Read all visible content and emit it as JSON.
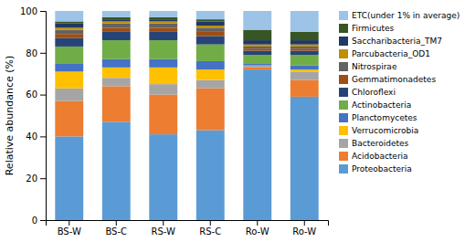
{
  "chart_data": {
    "type": "bar",
    "stacked": true,
    "categories": [
      "BS-W",
      "BS-C",
      "RS-W",
      "RS-C",
      "Ro-W",
      "Ro-W"
    ],
    "series": [
      {
        "name": "Proteobacteria",
        "color": "#5B9BD5",
        "values": [
          40,
          47,
          41,
          43,
          72,
          59
        ]
      },
      {
        "name": "Acidobacteria",
        "color": "#ED7D31",
        "values": [
          17,
          17,
          19,
          20,
          1,
          8
        ]
      },
      {
        "name": "Bacteroidetes",
        "color": "#A5A5A5",
        "values": [
          6,
          4,
          5,
          4,
          1,
          4
        ]
      },
      {
        "name": "Verrucomicrobia",
        "color": "#FFC000",
        "values": [
          8,
          5,
          8,
          5,
          0,
          1
        ]
      },
      {
        "name": "Planctomycetes",
        "color": "#4472C4",
        "values": [
          4,
          4,
          4,
          4,
          1,
          2
        ]
      },
      {
        "name": "Actinobacteria",
        "color": "#70AD47",
        "values": [
          8,
          9,
          9,
          8,
          4,
          5
        ]
      },
      {
        "name": "Chloroflexi",
        "color": "#264478",
        "values": [
          4,
          4,
          4,
          4,
          2,
          2
        ]
      },
      {
        "name": "Gemmatimonadetes",
        "color": "#9E4E12",
        "values": [
          2,
          2,
          2,
          2,
          1,
          1
        ]
      },
      {
        "name": "Nitrospirae",
        "color": "#636363",
        "values": [
          2,
          2,
          2,
          2,
          1,
          1
        ]
      },
      {
        "name": "Parcubacteria_OD1",
        "color": "#BF8F00",
        "values": [
          1,
          1,
          1,
          1,
          1,
          1
        ]
      },
      {
        "name": "Saccharibacteria_TM7",
        "color": "#203864",
        "values": [
          2,
          1,
          1,
          2,
          2,
          2
        ]
      },
      {
        "name": "Firmicutes",
        "color": "#375623",
        "values": [
          1,
          1,
          1,
          1,
          5,
          4
        ]
      },
      {
        "name": "ETC(under 1% in average)",
        "color": "#9DC3E6",
        "values": [
          5,
          3,
          3,
          4,
          9,
          10
        ]
      }
    ],
    "ylabel": "Relative abundance (%)",
    "ylim": [
      0,
      100
    ],
    "yticks": [
      0,
      20,
      40,
      60,
      80,
      100
    ],
    "grid": false,
    "legend": "right"
  }
}
